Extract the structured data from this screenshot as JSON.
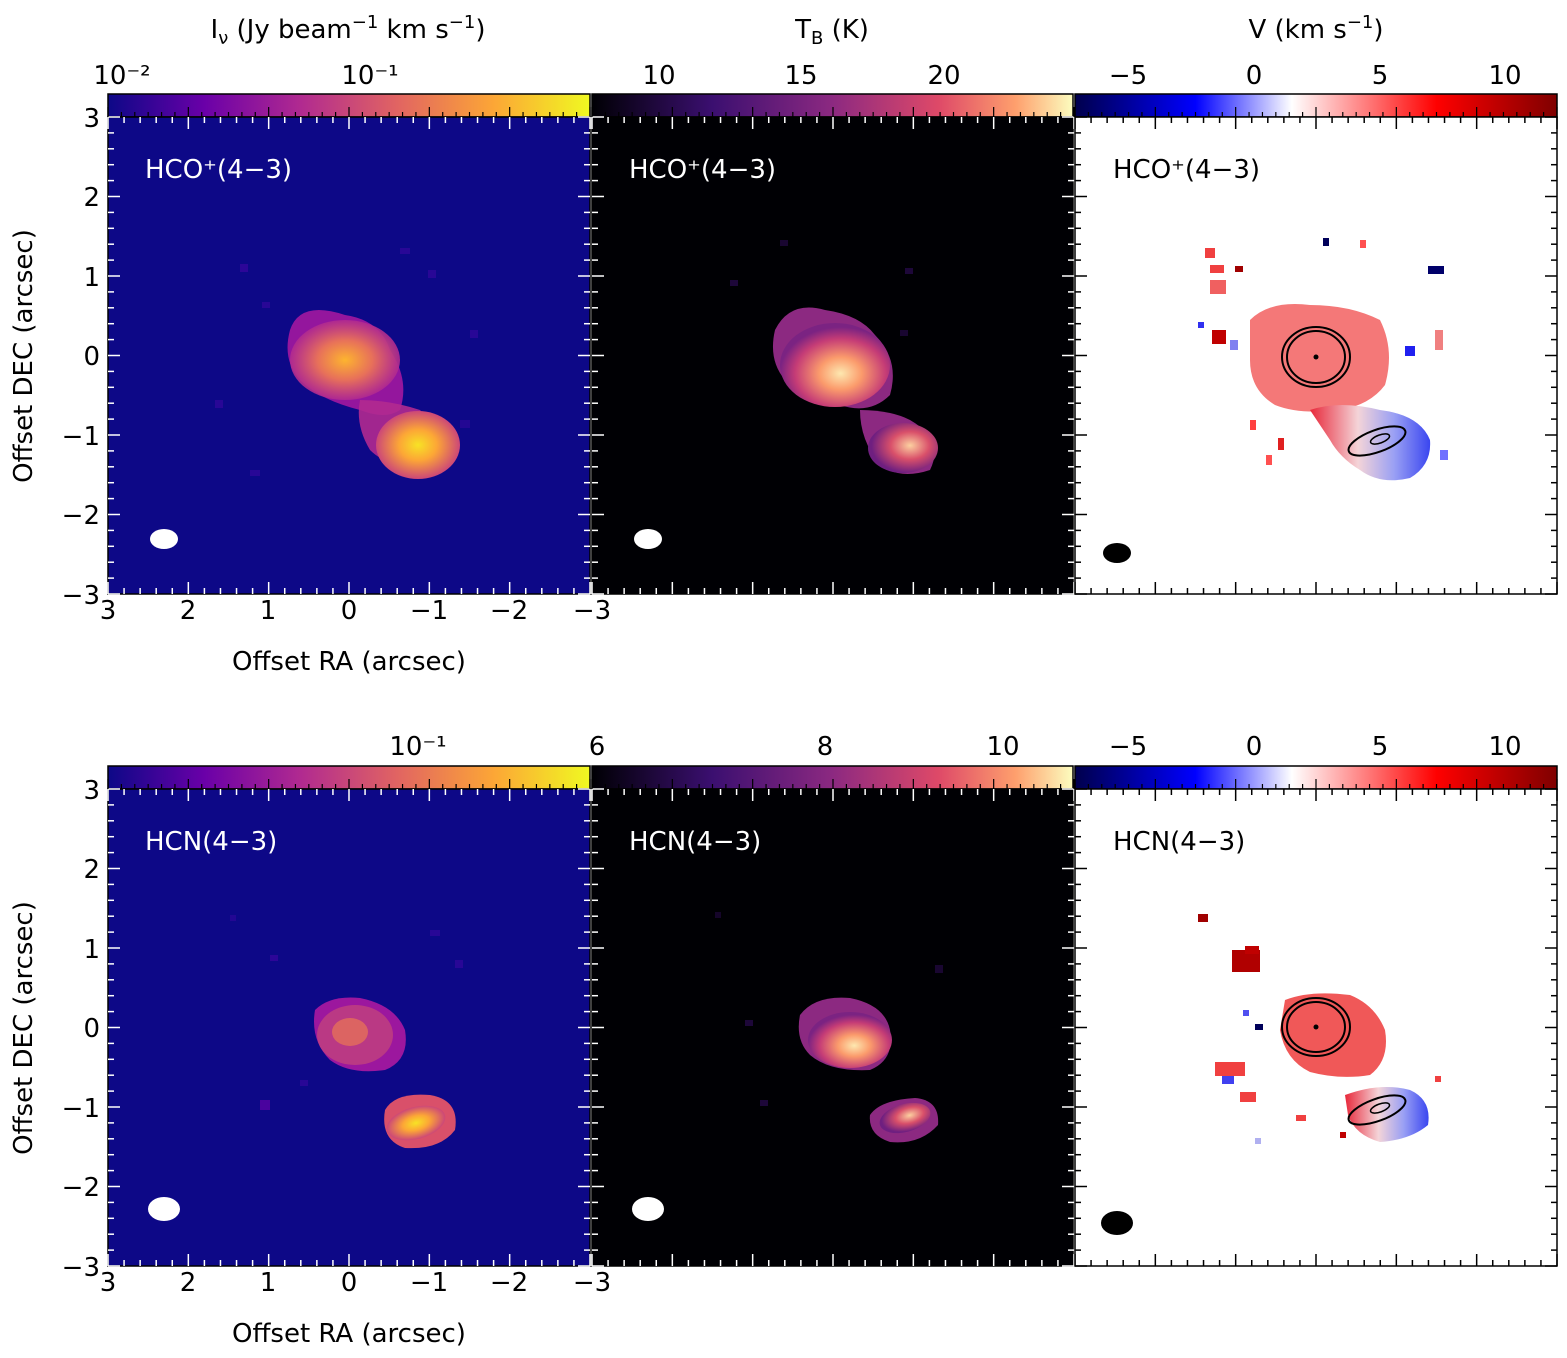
{
  "figure": {
    "type": "image-panels",
    "axes": {
      "xlabel": "Offset RA (arcsec)",
      "ylabel": "Offset DEC (arcsec)",
      "xticks": [
        "3",
        "2",
        "1",
        "0",
        "−1",
        "−2",
        "−3"
      ],
      "yticks": [
        "3",
        "2",
        "1",
        "0",
        "−1",
        "−2",
        "−3"
      ]
    },
    "colorbars": {
      "intensity_label": "Iν (Jy beam⁻¹ km s⁻¹)",
      "tb_label": "T_B (K)",
      "velocity_label": "V (km s⁻¹)",
      "row1": {
        "intensity_ticks": [
          "10⁻²",
          "10⁻¹"
        ],
        "tb_ticks": [
          "10",
          "15",
          "20"
        ],
        "velocity_ticks": [
          "−5",
          "0",
          "5",
          "10"
        ]
      },
      "row2": {
        "intensity_ticks": [
          "10⁻¹"
        ],
        "tb_ticks": [
          "6",
          "8",
          "10"
        ],
        "velocity_ticks": [
          "−5",
          "0",
          "5",
          "10"
        ]
      }
    },
    "rows": [
      {
        "molecule": "HCO⁺(4−3)",
        "panels": [
          "integrated intensity",
          "peak brightness temperature",
          "velocity field"
        ]
      },
      {
        "molecule": "HCN(4−3)",
        "panels": [
          "integrated intensity",
          "peak brightness temperature",
          "velocity field"
        ]
      }
    ],
    "colormaps": {
      "plasma": [
        "#0d0887",
        "#6a00a8",
        "#b12a90",
        "#e16462",
        "#fca636",
        "#f0f921"
      ],
      "magma": [
        "#000004",
        "#3b0f70",
        "#8c2981",
        "#de4968",
        "#fe9f6d",
        "#fcfdbf"
      ],
      "seismic": [
        "#00004c",
        "#0000ff",
        "#ffffff",
        "#ff0000",
        "#7f0000"
      ]
    }
  }
}
